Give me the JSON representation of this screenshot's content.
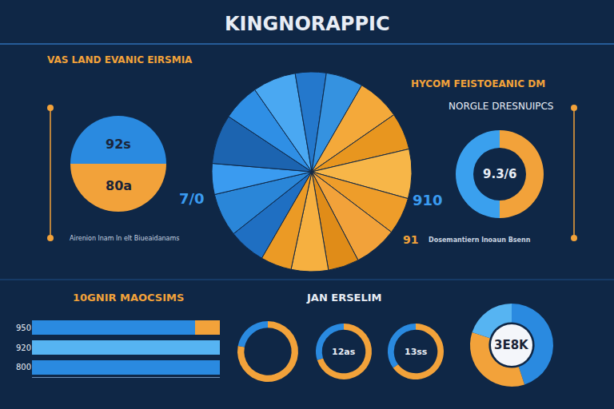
{
  "title": "KINGNORAPPIC",
  "chart_data": [
    {
      "type": "pie",
      "title": "VAS LAND EVANIC EIRSMIA",
      "subtitle": "Airenion lnam ln elt Biueaidanams",
      "values": [
        50,
        50
      ],
      "colors": [
        "#2a8ae0",
        "#f2a23a"
      ],
      "annotations": [
        "92s",
        "80a"
      ]
    },
    {
      "type": "pie",
      "values": [
        6,
        7,
        5,
        8,
        6,
        7,
        5,
        6,
        7,
        6,
        8,
        6,
        7,
        5,
        6,
        5
      ],
      "colors": [
        "#1f6fc2",
        "#2a86d8",
        "#3a9bf0",
        "#1c64b0",
        "#2f8fe5",
        "#4aa8f2",
        "#2478cc",
        "#3592e0",
        "#f4a93a",
        "#e8961f",
        "#f7b648",
        "#ee9d2a",
        "#f2a23a",
        "#e08c18",
        "#f6b040",
        "#eb9a25"
      ],
      "annotations": [
        "7/0",
        "910",
        "91"
      ]
    },
    {
      "type": "pie",
      "title": "HYCOM FEISTOEANIC DM",
      "subtitle": "NORGLE DRESNUIPCS",
      "values": [
        50,
        50
      ],
      "colors": [
        "#f2a23a",
        "#3aa0ee"
      ],
      "annotations": [
        "9.3/6",
        "Dosemantiern lnoaun Bsenn"
      ]
    },
    {
      "type": "bar",
      "orientation": "horizontal",
      "stacked": true,
      "title": "10GNIR MAOCSIMS",
      "categories": [
        "950",
        "920",
        "800"
      ],
      "series": [
        {
          "colors": [
            "#2a8ae0",
            "#56b4f2",
            "#2a8ae0"
          ],
          "values": [
            87,
            100,
            100
          ]
        },
        {
          "color": "#f2a23a",
          "values": [
            13,
            0,
            0
          ]
        }
      ],
      "xlim": [
        0,
        100
      ],
      "tick_labels": "y",
      "grid": false
    },
    {
      "type": "pie",
      "values": [
        78,
        22
      ],
      "colors": [
        "#f2a23a",
        "#2a8ae0"
      ]
    },
    {
      "type": "pie",
      "title": "JAN ERSELIM",
      "values": [
        70,
        30
      ],
      "colors": [
        "#f2a23a",
        "#2a8ae0"
      ],
      "annotations": [
        "12as"
      ]
    },
    {
      "type": "pie",
      "values": [
        65,
        35
      ],
      "colors": [
        "#f2a23a",
        "#2a8ae0"
      ],
      "annotations": [
        "13ss"
      ]
    },
    {
      "type": "pie",
      "values": [
        45,
        35,
        20
      ],
      "colors": [
        "#2a8ae0",
        "#f2a23a",
        "#56b4f2"
      ],
      "annotations": [
        "3E8K"
      ]
    }
  ]
}
